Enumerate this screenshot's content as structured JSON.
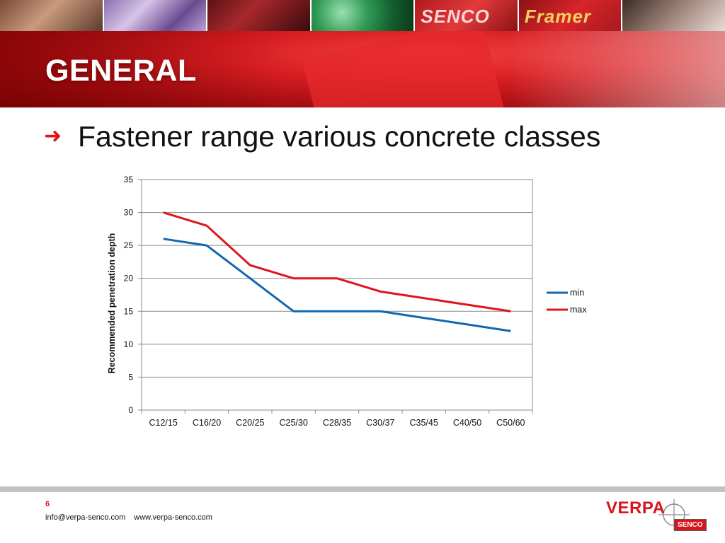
{
  "header": {
    "title": "GENERAL",
    "tile_texts": [
      "SENCO",
      "Framer"
    ]
  },
  "slide": {
    "bullet_icon": "arrow-right-icon",
    "heading": "Fastener range various concrete classes"
  },
  "chart_data": {
    "type": "line",
    "categories": [
      "C12/15",
      "C16/20",
      "C20/25",
      "C25/30",
      "C28/35",
      "C30/37",
      "C35/45",
      "C40/50",
      "C50/60"
    ],
    "series": [
      {
        "name": "min",
        "values": [
          26,
          25,
          20,
          15,
          15,
          15,
          14,
          13,
          12
        ],
        "color": "#1068b0"
      },
      {
        "name": "max",
        "values": [
          30,
          28,
          22,
          20,
          20,
          18,
          17,
          16,
          15
        ],
        "color": "#e0141b"
      }
    ],
    "ylabel": "Recommended penetration depth",
    "ylabel_color": "#e0141b",
    "xlabel": "",
    "title": "",
    "ylim": [
      0,
      35
    ],
    "yticks": [
      0,
      5,
      10,
      15,
      20,
      25,
      30,
      35
    ],
    "grid": true,
    "legend": "right"
  },
  "footer": {
    "page_number": "6",
    "email": "info@verpa-senco.com",
    "website": "www.verpa-senco.com",
    "logo_name": "VERPA",
    "logo_badge": "SENCO"
  },
  "colors": {
    "accent": "#e0141b",
    "banner_red": "#d81e22",
    "footer_bar": "#c2c2c2"
  }
}
